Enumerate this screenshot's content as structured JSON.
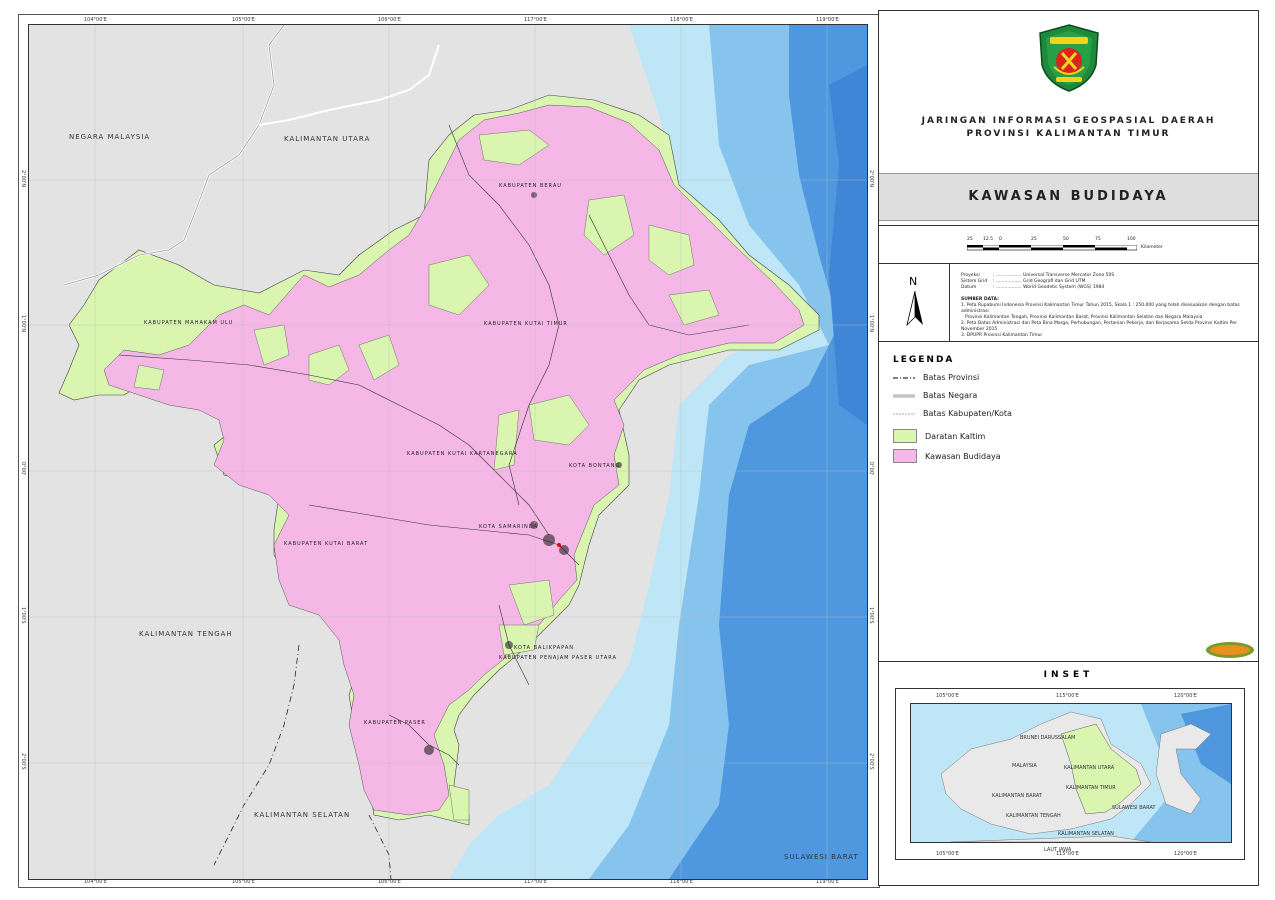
{
  "map": {
    "top_ticks": [
      "104°00'E",
      "105°00'E",
      "106°00'E",
      "117°00'E",
      "118°00'E",
      "119°00'E"
    ],
    "bottom_ticks": [
      "104°00'E",
      "105°00'E",
      "106°00'E",
      "117°00'E",
      "118°00'E",
      "119°00'E"
    ],
    "left_ticks": [
      "2°00'N",
      "1°00'N",
      "0°00'",
      "1°00'S",
      "2°00'S"
    ],
    "right_ticks": [
      "2°00'N",
      "1°00'N",
      "0°00'",
      "1°00'S",
      "2°00'S"
    ],
    "regions": {
      "malaysia": "NEGARA MALAYSIA",
      "kaltara": "KALIMANTAN UTARA",
      "kalteng": "KALIMANTAN TENGAH",
      "kalsel": "KALIMANTAN SELATAN",
      "sulbar": "SULAWESI BARAT"
    },
    "kabupaten": {
      "berau": "KABUPATEN BERAU",
      "mahulu": "KABUPATEN MAHAKAM ULU",
      "kutim": "KABUPATEN KUTAI TIMUR",
      "kukar": "KABUPATEN KUTAI KARTANEGARA",
      "bontang": "KOTA BONTANG",
      "samarinda": "KOTA SAMARINDA",
      "kubar": "KABUPATEN KUTAI BARAT",
      "balikpapan": "KOTA BALIKPAPAN",
      "ppu": "KABUPATEN PENAJAM PASER UTARA",
      "paser": "KABUPATEN PASER"
    },
    "colors": {
      "land_other": "#e3e3e3",
      "sea_light": "#bfe6f7",
      "sea_mid": "#86c4ee",
      "sea_deep": "#4f97de",
      "daratan": "#d9f5b0",
      "budidaya": "#f4b7e6"
    }
  },
  "title": {
    "line1": "JARINGAN INFORMASI GEOSPASIAL DAERAH",
    "line2": "PROVINSI KALIMANTAN TIMUR"
  },
  "theme": "KAWASAN BUDIDAYA",
  "scalebar": {
    "labels": [
      "25",
      "12.5",
      "0",
      "25",
      "50",
      "75",
      "100"
    ],
    "unit": "Kilometer"
  },
  "north": "N",
  "meta": {
    "proyeksi_label": "Proyeksi",
    "proyeksi_value": ": .................. Universal Transverse Mercator Zona 50S",
    "sistem_label": "Sistem Grid",
    "sistem_value": ": .................. Grid Geografi dan Grid UTM",
    "datum_label": "Datum",
    "datum_value": ": .................. World Geodetic System (WGS) 1984",
    "sumber_title": "SUMBER DATA:",
    "sumber_1": "1. Peta Rupabumi Indonesia Provinsi Kalimantan Timur Tahun 2015, Skala 1 : 250.000 yang telah disesuaikan dengan batas administrasi",
    "sumber_1b": "Provinsi Kalimantan Tengah, Provinsi Kalimantan Barat, Provinsi Kalimantan Selatan dan Negara Malaysia",
    "sumber_2": "2. Peta Batas Administrasi dan Peta Bina Marga, Perhubungan, Pertanian Pekerja, dan Kerjasama Setda Provinsi Kaltim Per November 2015",
    "sumber_3": "3. DPUPR Provinsi Kalimantan Timur"
  },
  "legend": {
    "title": "LEGENDA",
    "items": [
      {
        "label": "Batas Provinsi"
      },
      {
        "label": "Batas Negara"
      },
      {
        "label": "Batas Kabupaten/Kota"
      },
      {
        "label": "Daratan Kaltim"
      },
      {
        "label": "Kawasan Budidaya"
      }
    ]
  },
  "inset": {
    "title": "INSET",
    "top_ticks": [
      "105°00'E",
      "115°00'E",
      "120°00'E"
    ],
    "bottom_ticks": [
      "105°00'E",
      "115°00'E",
      "120°00'E"
    ],
    "labels": {
      "brunei": "BRUNEI DARUSSALAM",
      "malaysia": "MALAYSIA",
      "kalbar": "KALIMANTAN BARAT",
      "kalteng": "KALIMANTAN TENGAH",
      "kalsel": "KALIMANTAN SELATAN",
      "kaltim": "KALIMANTAN TIMUR",
      "kaltara": "KALIMANTAN UTARA",
      "sulbar": "SULAWESI BARAT",
      "laut_jawa": "LAUT JAWA"
    }
  }
}
